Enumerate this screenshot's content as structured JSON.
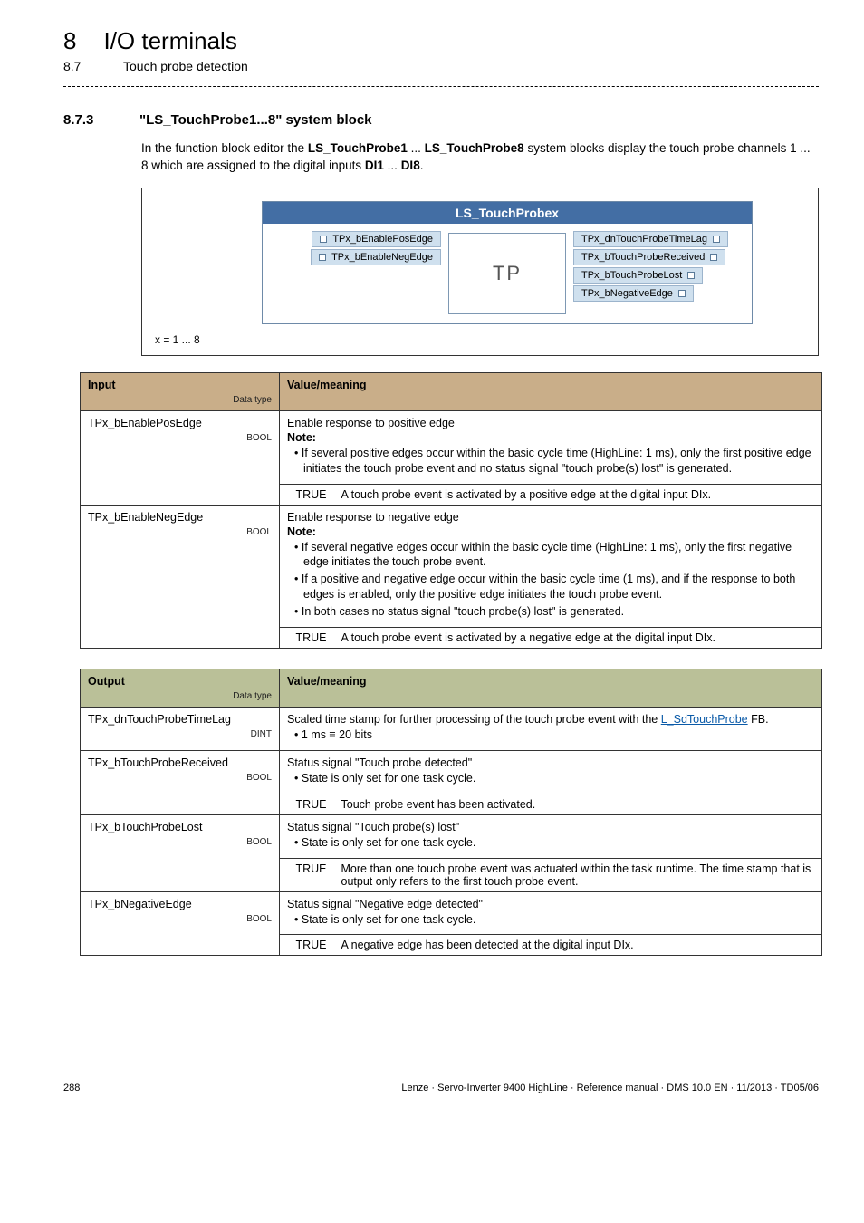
{
  "header": {
    "chapter_num": "8",
    "chapter_title": "I/O terminals",
    "section_num": "8.7",
    "section_title": "Touch probe detection"
  },
  "section": {
    "num": "8.7.3",
    "title": "\"LS_TouchProbe1...8\" system block"
  },
  "intro_pre": "In the function block editor the ",
  "intro_b1": "LS_TouchProbe1",
  "intro_mid1": " ... ",
  "intro_b2": "LS_TouchProbe8",
  "intro_mid2": " system blocks display the touch probe channels 1 ... 8 which are assigned to the digital inputs ",
  "intro_b3": "DI1",
  "intro_mid3": " ... ",
  "intro_b4": "DI8",
  "intro_post": ".",
  "diagram": {
    "title": "LS_TouchProbex",
    "left_ports": [
      "TPx_bEnablePosEdge",
      "TPx_bEnableNegEdge"
    ],
    "center": "TP",
    "right_ports": [
      "TPx_dnTouchProbeTimeLag",
      "TPx_bTouchProbeReceived",
      "TPx_bTouchProbeLost",
      "TPx_bNegativeEdge"
    ],
    "x_range": "x = 1 ... 8"
  },
  "colors": {
    "input_header": "#c9ae89",
    "output_header": "#bac098",
    "diagram_header": "#436ea4",
    "port_bg": "#cfe0ee"
  },
  "input_table": {
    "col1": "Input",
    "col1_sub": "Data type",
    "col2": "Value/meaning",
    "rows": [
      {
        "name": "TPx_bEnablePosEdge",
        "dtype": "BOOL",
        "lead": "Enable response to positive edge",
        "note_label": "Note:",
        "bullets": [
          "If several positive edges occur within the basic cycle time (HighLine: 1 ms), only the first positive edge initiates the touch probe event and no status signal \"touch probe(s) lost\" is generated."
        ],
        "true_val": "TRUE",
        "true_desc": "A touch probe event is activated by a positive edge at the digital input DIx."
      },
      {
        "name": "TPx_bEnableNegEdge",
        "dtype": "BOOL",
        "lead": "Enable response to negative edge",
        "note_label": "Note:",
        "bullets": [
          "If several negative edges occur within the basic cycle time (HighLine: 1 ms), only the first negative edge initiates the touch probe event.",
          "If a positive and negative edge occur within the basic cycle time (1 ms), and if the response to both edges is enabled, only the positive edge initiates the touch probe event.",
          "In both cases no status signal \"touch probe(s) lost\" is generated."
        ],
        "true_val": "TRUE",
        "true_desc": "A touch probe event is activated by a negative edge at the digital input DIx."
      }
    ]
  },
  "output_table": {
    "col1": "Output",
    "col1_sub": "Data type",
    "col2": "Value/meaning",
    "rows": [
      {
        "name": "TPx_dnTouchProbeTimeLag",
        "dtype": "DINT",
        "lead": "Scaled time stamp for further processing of the touch probe event with the",
        "fb_ref": "L_SdTouchProbe",
        "fb_suffix": " FB.",
        "bullets": [
          "1 ms ≡ 20 bits"
        ],
        "has_true": false
      },
      {
        "name": "TPx_bTouchProbeReceived",
        "dtype": "BOOL",
        "lead": "Status signal \"Touch probe detected\"",
        "bullets": [
          "State is only set for one task cycle."
        ],
        "has_true": true,
        "true_val": "TRUE",
        "true_desc": "Touch probe event has been activated."
      },
      {
        "name": "TPx_bTouchProbeLost",
        "dtype": "BOOL",
        "lead": "Status signal \"Touch probe(s) lost\"",
        "bullets": [
          "State is only set for one task cycle."
        ],
        "has_true": true,
        "true_val": "TRUE",
        "true_desc": "More than one touch probe event was actuated within the task runtime. The time stamp that is output only refers to the first touch probe event."
      },
      {
        "name": "TPx_bNegativeEdge",
        "dtype": "BOOL",
        "lead": "Status signal \"Negative edge detected\"",
        "bullets": [
          "State is only set for one task cycle."
        ],
        "has_true": true,
        "true_val": "TRUE",
        "true_desc": "A negative edge has been detected at the digital input DIx."
      }
    ]
  },
  "footer": {
    "page": "288",
    "meta": "Lenze · Servo-Inverter 9400 HighLine · Reference manual · DMS 10.0 EN · 11/2013 · TD05/06"
  }
}
